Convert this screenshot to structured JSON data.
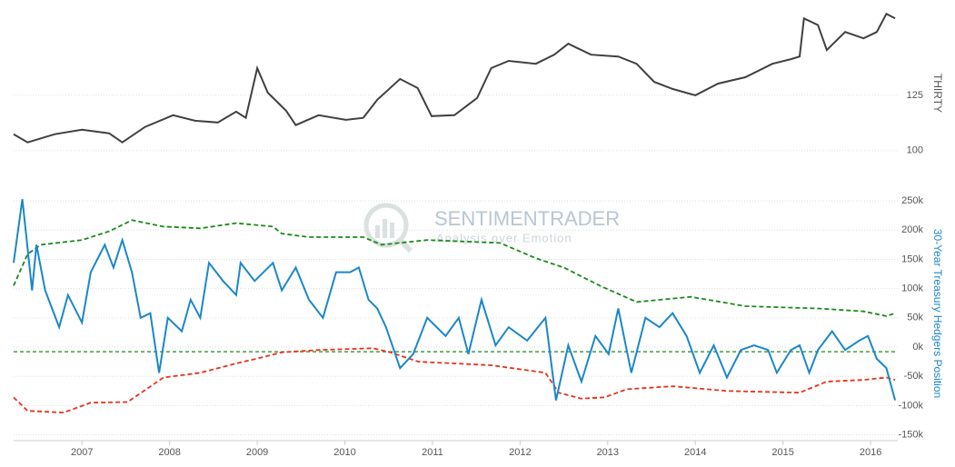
{
  "chart_data": [
    {
      "type": "line",
      "y_label": "THIRTY",
      "ylim": [
        90,
        162
      ],
      "yticks": [
        100,
        125
      ],
      "grid": true,
      "series": [
        {
          "name": "THIRTY",
          "color": "#404040",
          "x": [
            2006.22,
            2006.38,
            2006.69,
            2007.0,
            2007.31,
            2007.46,
            2007.72,
            2008.04,
            2008.29,
            2008.55,
            2008.76,
            2008.87,
            2009.0,
            2009.12,
            2009.33,
            2009.44,
            2009.7,
            2010.01,
            2010.21,
            2010.37,
            2010.63,
            2010.83,
            2010.99,
            2011.25,
            2011.51,
            2011.67,
            2011.87,
            2012.18,
            2012.39,
            2012.55,
            2012.81,
            2013.12,
            2013.33,
            2013.53,
            2013.74,
            2014.0,
            2014.26,
            2014.57,
            2014.88,
            2015.09,
            2015.19,
            2015.24,
            2015.4,
            2015.5,
            2015.71,
            2015.92,
            2016.07,
            2016.18,
            2016.28
          ],
          "values": [
            107.4,
            103.7,
            107.4,
            109.4,
            107.8,
            103.7,
            110.7,
            116,
            113.5,
            112.7,
            117.6,
            114.8,
            137.3,
            126.2,
            118,
            111.5,
            116,
            113.9,
            114.8,
            123,
            132.4,
            128.3,
            115.6,
            116,
            123.8,
            137.3,
            140.6,
            139.3,
            143.4,
            148.4,
            143.4,
            142.6,
            139.3,
            131.1,
            127.9,
            125,
            130.3,
            133.2,
            139.3,
            141.4,
            142.6,
            159.8,
            156.8,
            145.5,
            153.7,
            150.8,
            153.7,
            161.9,
            159.8
          ]
        }
      ]
    },
    {
      "type": "line",
      "y_label": "30-Year Treasury Hedgers Position",
      "ylim": [
        -160000,
        275000
      ],
      "yticks": [
        {
          "value": 250000,
          "label": "250k"
        },
        {
          "value": 200000,
          "label": "200k"
        },
        {
          "value": 150000,
          "label": "150k"
        },
        {
          "value": 100000,
          "label": "100k"
        },
        {
          "value": 50000,
          "label": "50k"
        },
        {
          "value": 0,
          "label": "0k"
        },
        {
          "value": -50000,
          "label": "-50k"
        },
        {
          "value": -100000,
          "label": "-100k"
        },
        {
          "value": -150000,
          "label": "-150k"
        }
      ],
      "grid": true,
      "xlim": [
        2006.22,
        2016.31
      ],
      "xticks": [
        2007,
        2008,
        2009,
        2010,
        2011,
        2012,
        2013,
        2014,
        2015,
        2016
      ],
      "watermark": {
        "title": "SENTIMENTRADER",
        "subtitle": "Analysis over Emotion"
      },
      "reference_line": {
        "value": -8000,
        "color": "#1a8a1a"
      },
      "series": [
        {
          "color": "#1a8a1a",
          "dashed": true,
          "x": [
            2006.22,
            2006.38,
            2006.53,
            2007.0,
            2007.31,
            2007.57,
            2007.93,
            2008.35,
            2008.76,
            2009.18,
            2009.28,
            2009.59,
            2010.21,
            2010.42,
            2010.94,
            2011.77,
            2012.18,
            2012.5,
            2012.91,
            2013.33,
            2013.95,
            2014.57,
            2015.4,
            2015.92,
            2016.18,
            2016.28
          ],
          "values": [
            105000,
            159000,
            175000,
            183000,
            198000,
            217000,
            206000,
            203000,
            212000,
            206000,
            194000,
            188000,
            188000,
            175000,
            183000,
            178000,
            152000,
            136000,
            105000,
            77000,
            86000,
            70000,
            66000,
            61000,
            53000,
            58000
          ]
        },
        {
          "color": "#e8321e",
          "dashed": true,
          "x": [
            2006.22,
            2006.38,
            2006.79,
            2007.1,
            2007.52,
            2007.93,
            2008.35,
            2008.76,
            2009.07,
            2009.28,
            2009.7,
            2010.32,
            2010.52,
            2010.84,
            2011.67,
            2012.29,
            2012.44,
            2012.7,
            2012.96,
            2013.22,
            2013.74,
            2014.36,
            2015.19,
            2015.5,
            2015.92,
            2016.18,
            2016.28
          ],
          "values": [
            -86000,
            -109000,
            -112000,
            -95000,
            -94000,
            -52000,
            -44000,
            -28000,
            -17000,
            -9000,
            -5000,
            -2000,
            -9000,
            -25000,
            -31000,
            -44000,
            -78000,
            -88000,
            -86000,
            -72000,
            -67000,
            -75000,
            -78000,
            -59000,
            -56000,
            -52000,
            -56000
          ]
        },
        {
          "color": "#1a87c9",
          "x": [
            2006.22,
            2006.32,
            2006.43,
            2006.48,
            2006.58,
            2006.74,
            2006.84,
            2007.0,
            2007.1,
            2007.26,
            2007.36,
            2007.46,
            2007.57,
            2007.67,
            2007.78,
            2007.88,
            2007.98,
            2008.14,
            2008.24,
            2008.35,
            2008.45,
            2008.61,
            2008.76,
            2008.81,
            2008.97,
            2009.18,
            2009.28,
            2009.44,
            2009.59,
            2009.75,
            2009.9,
            2010.06,
            2010.16,
            2010.27,
            2010.37,
            2010.47,
            2010.63,
            2010.78,
            2010.94,
            2011.15,
            2011.3,
            2011.41,
            2011.56,
            2011.72,
            2011.87,
            2012.08,
            2012.29,
            2012.41,
            2012.55,
            2012.7,
            2012.86,
            2013.01,
            2013.12,
            2013.27,
            2013.43,
            2013.59,
            2013.74,
            2013.9,
            2014.05,
            2014.21,
            2014.36,
            2014.52,
            2014.67,
            2014.83,
            2014.93,
            2015.09,
            2015.19,
            2015.3,
            2015.4,
            2015.56,
            2015.71,
            2015.87,
            2015.97,
            2016.07,
            2016.18,
            2016.28
          ],
          "values": [
            144000,
            253000,
            97000,
            175000,
            97000,
            34000,
            89000,
            42000,
            128000,
            175000,
            136000,
            183000,
            128000,
            50000,
            58000,
            -44000,
            50000,
            27000,
            81000,
            50000,
            144000,
            113000,
            89000,
            144000,
            113000,
            144000,
            97000,
            136000,
            81000,
            50000,
            128000,
            128000,
            136000,
            81000,
            66000,
            34000,
            -36000,
            -12000,
            50000,
            19000,
            50000,
            -12000,
            81000,
            3000,
            34000,
            11000,
            50000,
            -91000,
            3000,
            -59000,
            19000,
            -12000,
            66000,
            -44000,
            50000,
            34000,
            58000,
            19000,
            -44000,
            3000,
            -52000,
            -5000,
            3000,
            -5000,
            -44000,
            -5000,
            3000,
            -44000,
            -5000,
            27000,
            -5000,
            11000,
            19000,
            -20000,
            -36000,
            -91000
          ]
        }
      ]
    }
  ]
}
